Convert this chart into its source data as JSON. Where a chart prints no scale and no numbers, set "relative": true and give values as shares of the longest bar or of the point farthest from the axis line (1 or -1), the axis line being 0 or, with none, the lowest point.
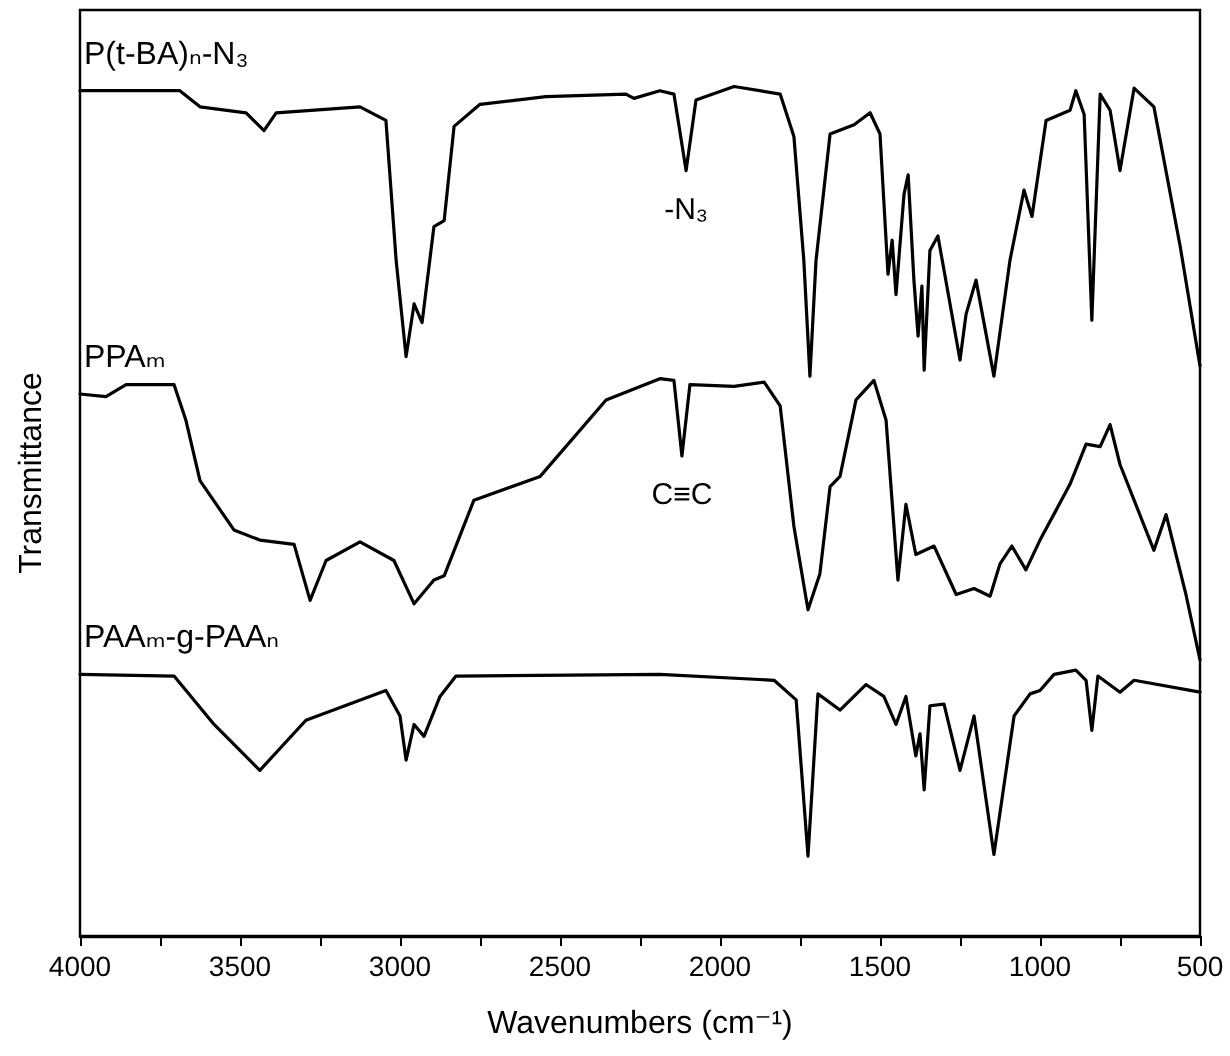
{
  "chart_data": {
    "type": "line",
    "relative": true,
    "xlabel": "Wavenumbers (cm⁻¹)",
    "ylabel": "Transmittance",
    "xlim": [
      4000,
      500
    ],
    "xticks": [
      4000,
      {
        "value": 3750,
        "label": null
      },
      3500,
      {
        "value": 3250,
        "label": null
      },
      3000,
      {
        "value": 2750,
        "label": null
      },
      2500,
      {
        "value": 2250,
        "label": null
      },
      2000,
      {
        "value": 1750,
        "label": null
      },
      1500,
      {
        "value": 1250,
        "label": null
      },
      1000,
      {
        "value": 750,
        "label": null
      },
      500
    ],
    "grid": false,
    "legend": false,
    "marker": "none",
    "line_style": "solid",
    "tick_labels": "x",
    "annotations": [
      {
        "text": "-N₃",
        "x": 2106,
        "y": 0.901
      },
      {
        "text": "C≡C",
        "x": 2119,
        "y": 0.565
      }
    ],
    "series": [
      {
        "name": "P(t-BA)ₙ-N₃",
        "color": "#000000",
        "x": [
          4000,
          3688,
          3625,
          3481,
          3425,
          3387,
          3125,
          3044,
          3012,
          2981,
          2956,
          2931,
          2894,
          2862,
          2831,
          2750,
          2544,
          2294,
          2269,
          2188,
          2144,
          2106,
          2075,
          1956,
          1812,
          1769,
          1738,
          1719,
          1700,
          1656,
          1581,
          1531,
          1500,
          1475,
          1462,
          1450,
          1425,
          1412,
          1394,
          1381,
          1369,
          1362,
          1344,
          1319,
          1250,
          1231,
          1200,
          1144,
          1094,
          1050,
          1025,
          981,
          906,
          888,
          862,
          838,
          812,
          781,
          750,
          706,
          644,
          562,
          500
        ],
        "values": [
          0.995,
          0.995,
          0.976,
          0.969,
          0.948,
          0.969,
          0.976,
          0.96,
          0.795,
          0.682,
          0.744,
          0.722,
          0.835,
          0.842,
          0.953,
          0.979,
          0.988,
          0.991,
          0.986,
          0.995,
          0.991,
          0.901,
          0.984,
          1.0,
          0.991,
          0.941,
          0.795,
          0.659,
          0.795,
          0.944,
          0.955,
          0.969,
          0.944,
          0.779,
          0.819,
          0.755,
          0.873,
          0.896,
          0.772,
          0.706,
          0.765,
          0.666,
          0.807,
          0.824,
          0.678,
          0.732,
          0.772,
          0.659,
          0.795,
          0.878,
          0.847,
          0.96,
          0.972,
          0.995,
          0.967,
          0.725,
          0.991,
          0.972,
          0.901,
          0.998,
          0.976,
          0.812,
          0.671
        ]
      },
      {
        "name": "PPAₘ",
        "color": "#000000",
        "x": [
          4000,
          3919,
          3856,
          3706,
          3669,
          3625,
          3519,
          3438,
          3331,
          3281,
          3231,
          3125,
          3019,
          2956,
          2894,
          2862,
          2769,
          2562,
          2356,
          2188,
          2144,
          2119,
          2094,
          1956,
          1862,
          1812,
          1769,
          1725,
          1688,
          1656,
          1625,
          1575,
          1519,
          1481,
          1444,
          1419,
          1388,
          1331,
          1262,
          1206,
          1156,
          1125,
          1088,
          1044,
          1000,
          950,
          906,
          856,
          812,
          781,
          750,
          644,
          606,
          544,
          500
        ],
        "values": [
          0.638,
          0.635,
          0.649,
          0.649,
          0.607,
          0.536,
          0.478,
          0.466,
          0.461,
          0.395,
          0.442,
          0.464,
          0.442,
          0.391,
          0.419,
          0.424,
          0.513,
          0.541,
          0.631,
          0.656,
          0.654,
          0.565,
          0.649,
          0.647,
          0.652,
          0.624,
          0.482,
          0.384,
          0.426,
          0.529,
          0.541,
          0.631,
          0.654,
          0.607,
          0.419,
          0.508,
          0.449,
          0.459,
          0.402,
          0.409,
          0.4,
          0.438,
          0.459,
          0.431,
          0.466,
          0.501,
          0.532,
          0.579,
          0.576,
          0.602,
          0.555,
          0.454,
          0.496,
          0.402,
          0.325
        ]
      },
      {
        "name": "PAAₘ-g-PAAₙ",
        "color": "#000000",
        "x": [
          4000,
          3706,
          3581,
          3438,
          3294,
          3044,
          3000,
          2981,
          2956,
          2925,
          2875,
          2825,
          2188,
          1831,
          1762,
          1725,
          1694,
          1625,
          1544,
          1488,
          1450,
          1419,
          1388,
          1375,
          1362,
          1344,
          1300,
          1250,
          1206,
          1144,
          1081,
          1031,
          1000,
          956,
          888,
          856,
          838,
          819,
          750,
          706,
          500
        ],
        "values": [
          0.308,
          0.306,
          0.249,
          0.195,
          0.254,
          0.289,
          0.259,
          0.207,
          0.249,
          0.235,
          0.282,
          0.306,
          0.308,
          0.301,
          0.278,
          0.094,
          0.285,
          0.266,
          0.296,
          0.282,
          0.249,
          0.282,
          0.212,
          0.238,
          0.172,
          0.271,
          0.273,
          0.195,
          0.259,
          0.096,
          0.259,
          0.285,
          0.289,
          0.308,
          0.313,
          0.301,
          0.242,
          0.306,
          0.287,
          0.301,
          0.287
        ]
      }
    ]
  }
}
